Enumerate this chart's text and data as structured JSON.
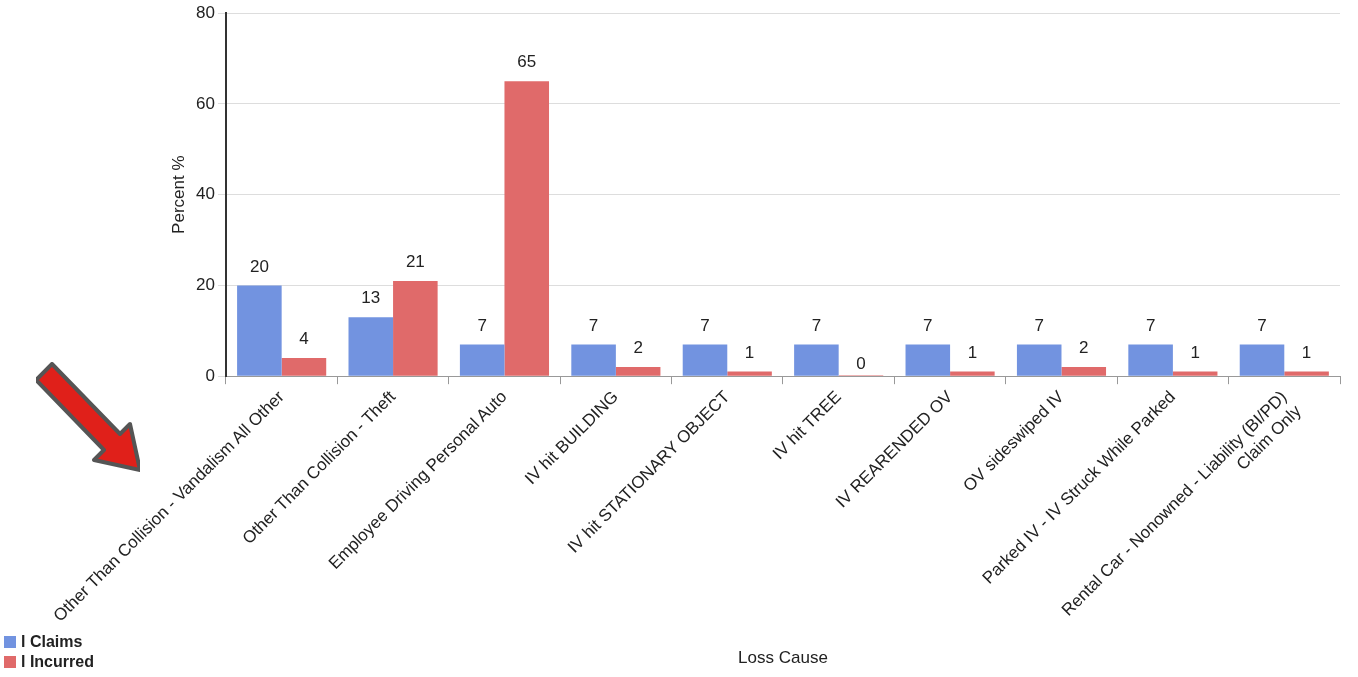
{
  "chart_data": {
    "type": "bar",
    "xlabel": "Loss Cause",
    "ylabel": "Percent %",
    "categories": [
      "Other Than Collision - Vandalism All Other",
      "Other Than Collision - Theft",
      "Employee Driving Personal Auto",
      "IV hit BUILDING",
      "IV hit STATIONARY OBJECT",
      "IV hit TREE",
      "IV REARENDED OV",
      "OV sideswiped IV",
      "Parked IV - IV Struck While Parked",
      "Rental Car - Nonowned - Liability (BI/PD)\nClaim Only"
    ],
    "series": [
      {
        "name": "l Claims",
        "color": "#7293e0",
        "values": [
          20,
          13,
          7,
          7,
          7,
          7,
          7,
          7,
          7,
          7
        ]
      },
      {
        "name": "l Incurred",
        "color": "#e06a6a",
        "values": [
          4,
          21,
          65,
          2,
          1,
          0,
          1,
          2,
          1,
          1
        ]
      }
    ],
    "ylim": [
      0,
      80
    ],
    "yticks": [
      0,
      20,
      40,
      60,
      80
    ],
    "grid": "y",
    "legend": "bottom left",
    "data_labels": true
  }
}
